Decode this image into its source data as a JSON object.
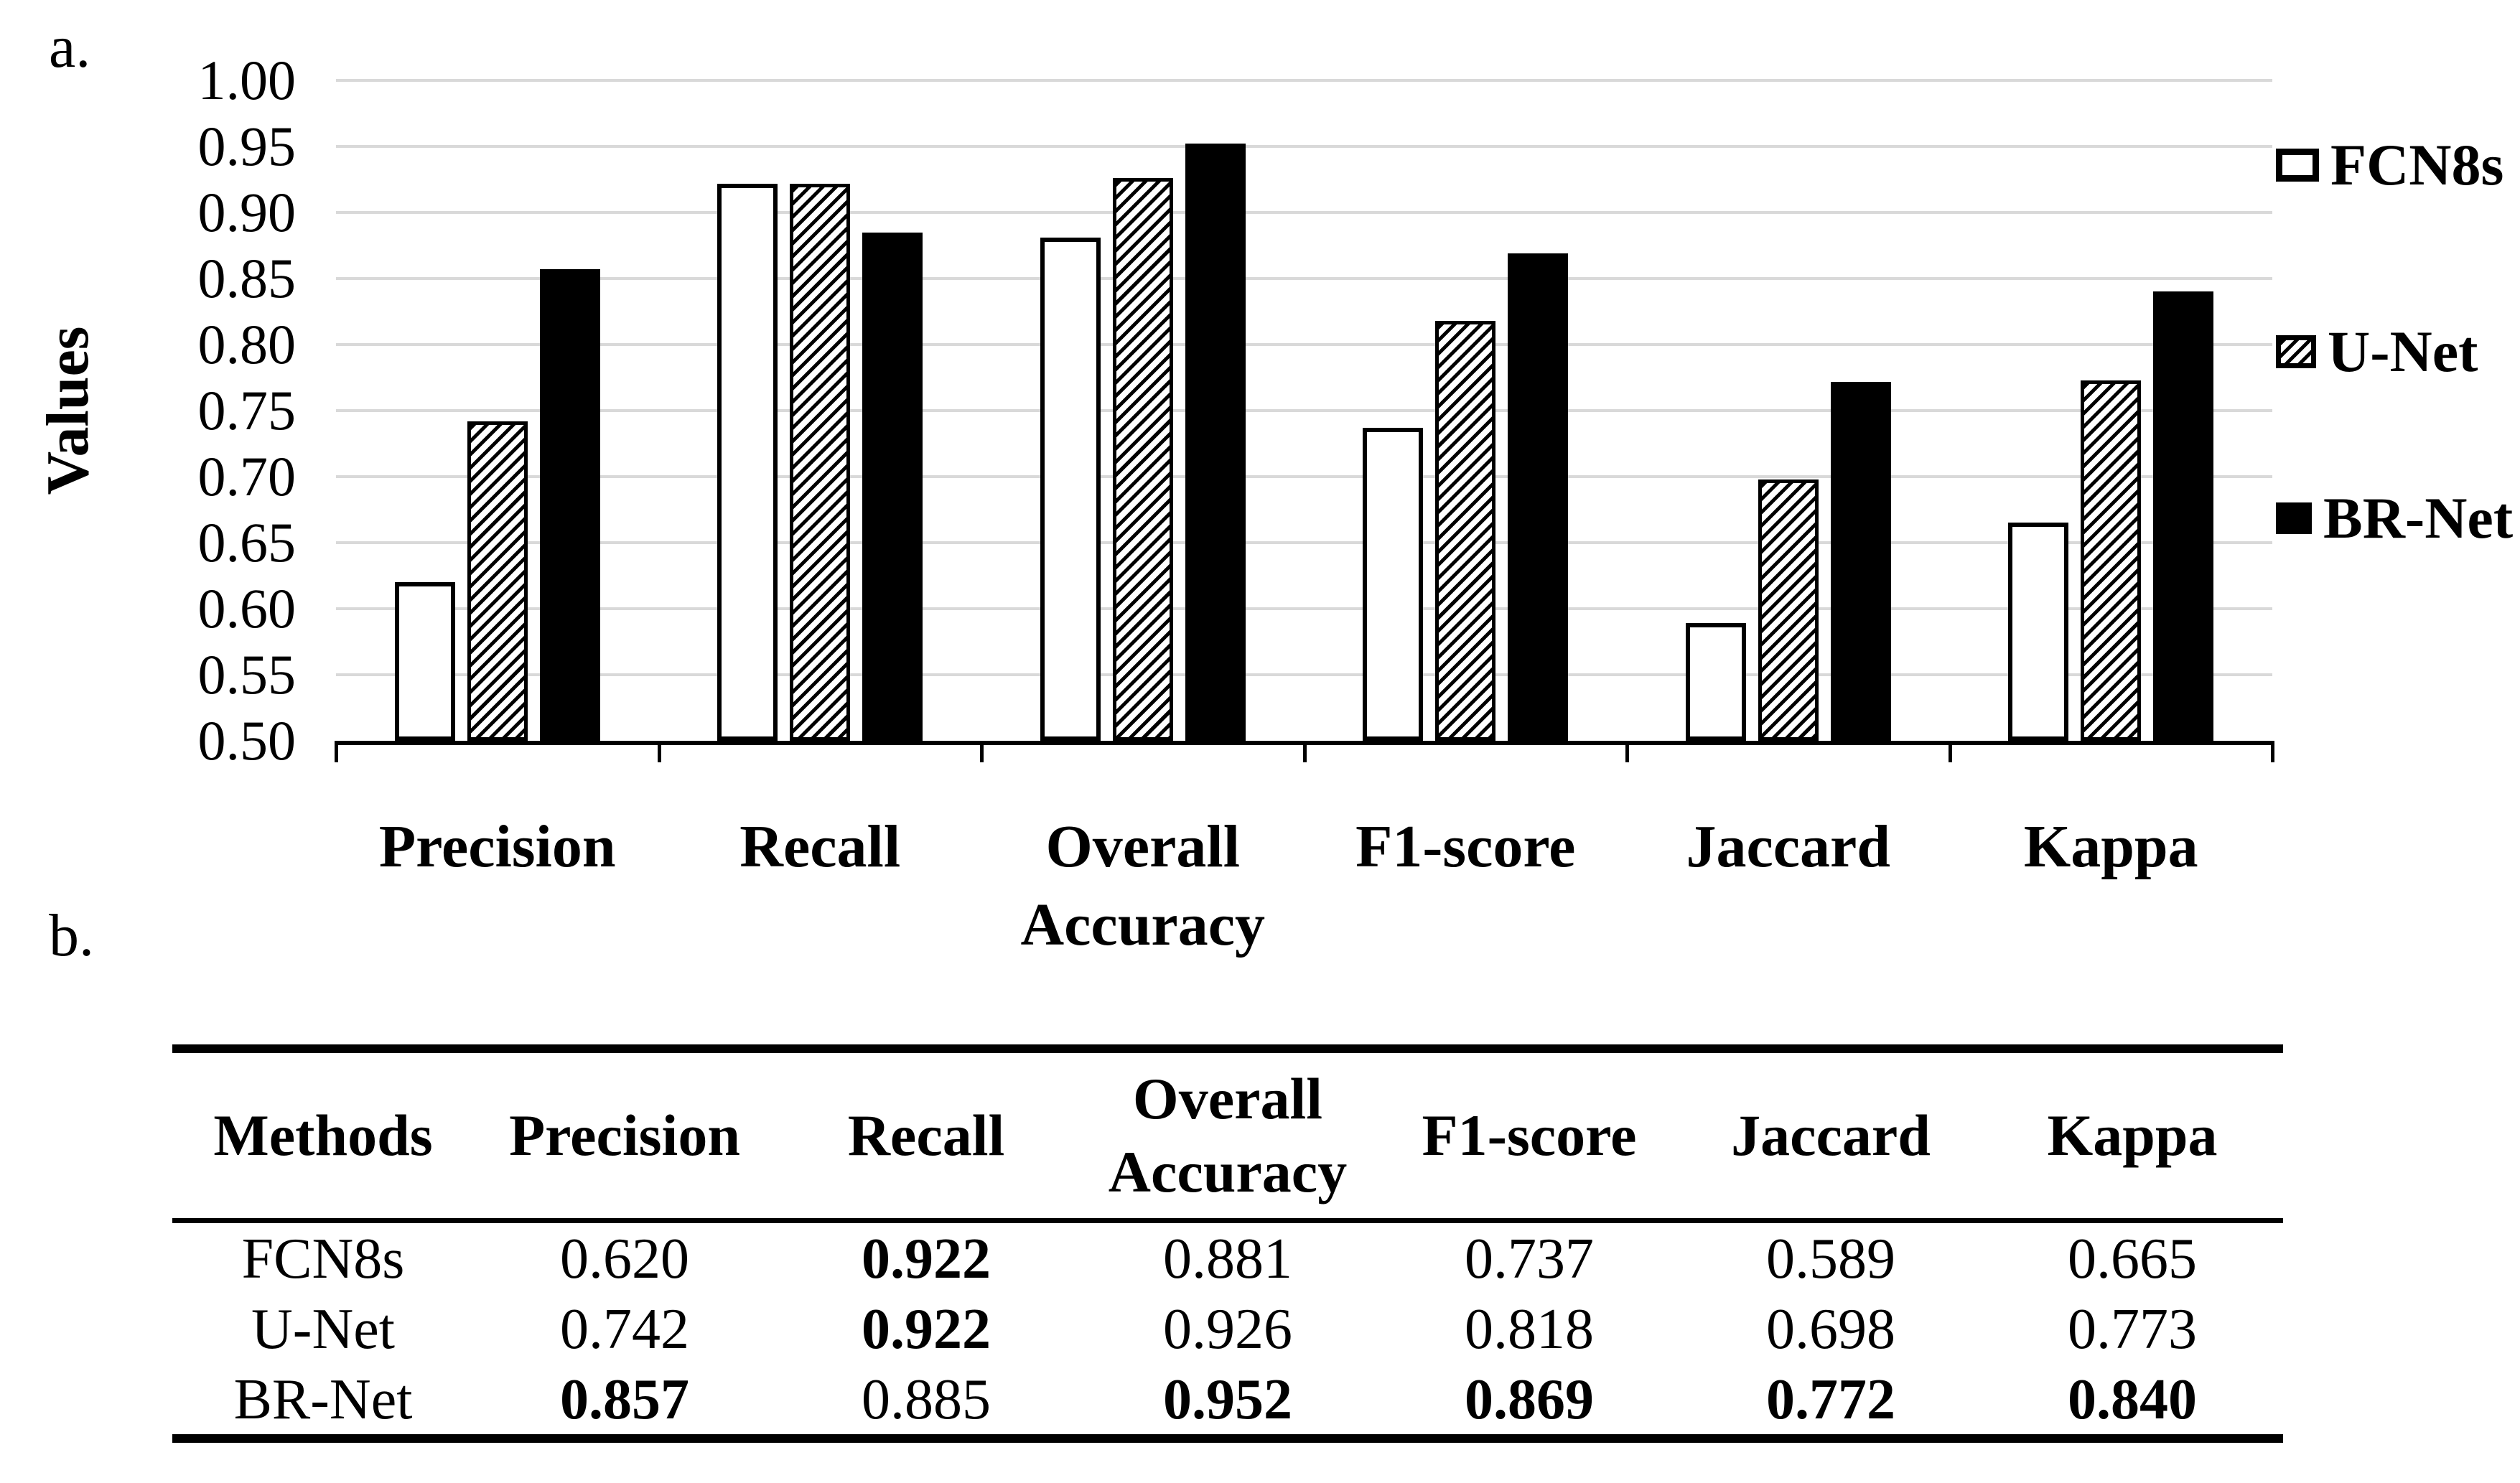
{
  "panels": {
    "a_label": "a.",
    "b_label": "b."
  },
  "chart_data": {
    "type": "bar",
    "title": "",
    "ylabel": "Values",
    "xlabel": "",
    "ylim": [
      0.5,
      1.0
    ],
    "ytick_step": 0.05,
    "yticks": [
      "1.00",
      "0.95",
      "0.90",
      "0.85",
      "0.80",
      "0.75",
      "0.70",
      "0.65",
      "0.60",
      "0.55",
      "0.50"
    ],
    "grid": true,
    "legend_position": "right",
    "categories": [
      "Precision",
      "Recall",
      "Overall\nAccuracy",
      "F1-score",
      "Jaccard",
      "Kappa"
    ],
    "series": [
      {
        "name": "FCN8s",
        "style": "white",
        "values": [
          0.62,
          0.922,
          0.881,
          0.737,
          0.589,
          0.665
        ]
      },
      {
        "name": "U-Net",
        "style": "hatched",
        "values": [
          0.742,
          0.922,
          0.926,
          0.818,
          0.698,
          0.773
        ]
      },
      {
        "name": "BR-Net",
        "style": "black",
        "values": [
          0.857,
          0.885,
          0.952,
          0.869,
          0.772,
          0.84
        ]
      }
    ]
  },
  "table": {
    "columns": [
      "Methods",
      "Precision",
      "Recall",
      "Overall\nAccuracy",
      "F1-score",
      "Jaccard",
      "Kappa"
    ],
    "rows": [
      {
        "method": "FCN8s",
        "values": [
          "0.620",
          "0.922",
          "0.881",
          "0.737",
          "0.589",
          "0.665"
        ],
        "bold": [
          false,
          true,
          false,
          false,
          false,
          false
        ]
      },
      {
        "method": "U-Net",
        "values": [
          "0.742",
          "0.922",
          "0.926",
          "0.818",
          "0.698",
          "0.773"
        ],
        "bold": [
          false,
          true,
          false,
          false,
          false,
          false
        ]
      },
      {
        "method": "BR-Net",
        "values": [
          "0.857",
          "0.885",
          "0.952",
          "0.869",
          "0.772",
          "0.840"
        ],
        "bold": [
          true,
          false,
          true,
          true,
          true,
          true
        ]
      }
    ]
  },
  "colors": {
    "gridline": "#d9d9d9",
    "bar_black": "#000000",
    "text": "#000000",
    "background": "#ffffff"
  }
}
